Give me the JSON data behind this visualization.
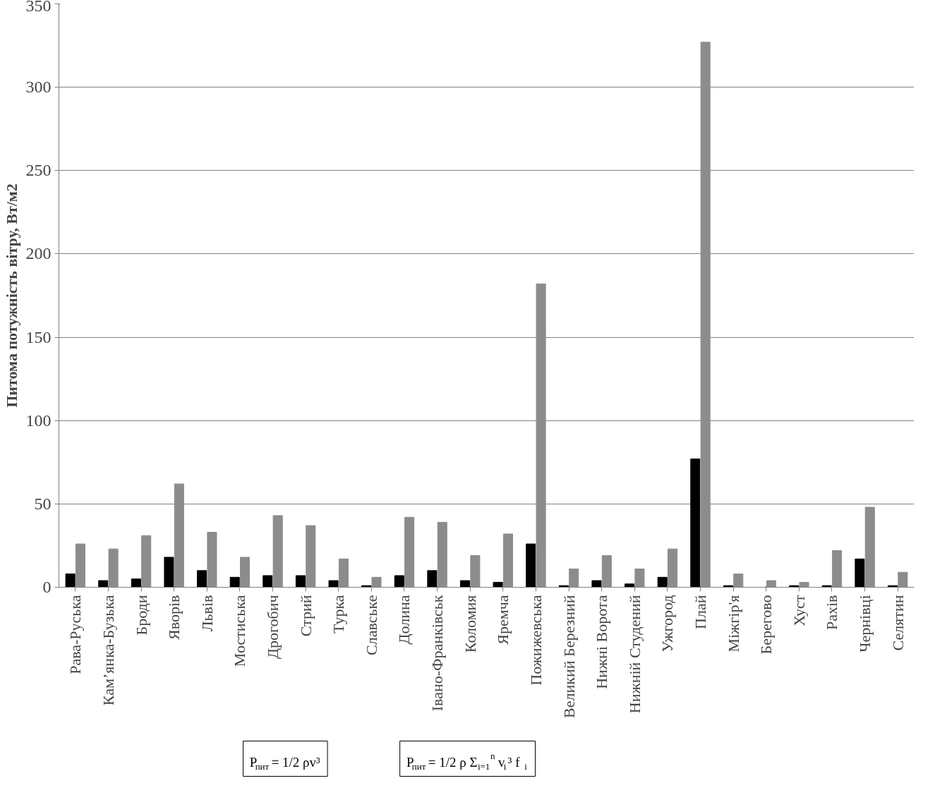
{
  "chart_data": {
    "type": "bar",
    "ylabel": "Питома потужність вітру, Вт/м2",
    "categories": [
      "Рава-Руська",
      "Кам’янка-Бузька",
      "Броди",
      "Яворів",
      "Львів",
      "Мостиська",
      "Дрогобич",
      "Стрий",
      "Турка",
      "Славське",
      "Долина",
      "Івано-Франківськ",
      "Коломия",
      "Яремча",
      "Пожижевська",
      "Великий Березний",
      "Нижні Ворота",
      "Нижній Студений",
      "Ужгород",
      "Плай",
      "Міжгір'я",
      "Берегово",
      "Хуст",
      "Рахів",
      "Чернівці",
      "Селятин"
    ],
    "series": [
      {
        "name": "P$_{пит}$ = 1/2 ρv³",
        "color": "#000000",
        "values": [
          8,
          4,
          5,
          18,
          10,
          6,
          7,
          7,
          4,
          1,
          7,
          10,
          4,
          3,
          26,
          1,
          4,
          2,
          6,
          77,
          1,
          0,
          1,
          1,
          17,
          1
        ]
      },
      {
        "name": "P$_{пит}$ = 1/2 ρ Σ$_{i=1}$$^{n}$ v$_{i}$³ f$_{i}$",
        "color": "#8c8c8c",
        "values": [
          26,
          23,
          31,
          62,
          33,
          18,
          43,
          37,
          17,
          6,
          42,
          39,
          19,
          32,
          182,
          11,
          19,
          11,
          23,
          327,
          8,
          4,
          3,
          22,
          48,
          9
        ]
      }
    ],
    "ylim": [
      0,
      350
    ],
    "yticks": [
      0,
      50,
      100,
      150,
      200,
      250,
      300,
      350
    ],
    "grid": "y",
    "legend": "bottom"
  }
}
